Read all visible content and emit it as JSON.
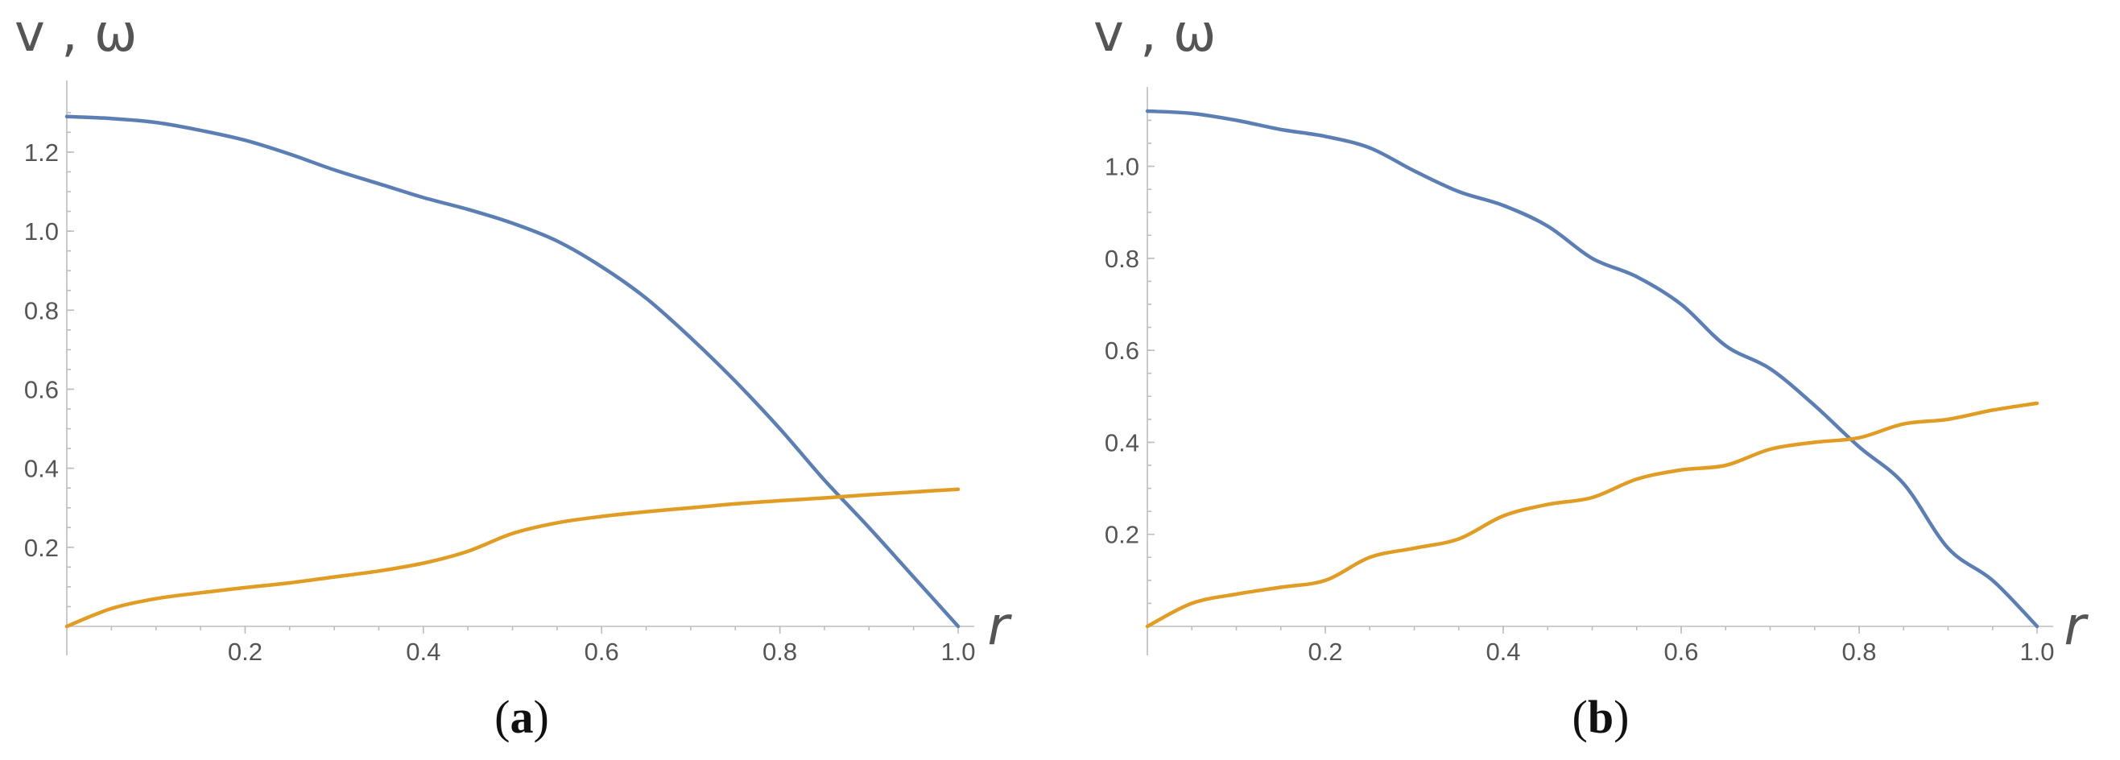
{
  "chart_data": [
    {
      "panel": "(a)",
      "type": "line",
      "ylabel": "v , ω",
      "xlabel": "r",
      "xlim": [
        0,
        1.0
      ],
      "ylim": [
        0,
        1.32
      ],
      "xticks": [
        "0.2",
        "0.4",
        "0.6",
        "0.8",
        "1.0"
      ],
      "yticks": [
        "0.2",
        "0.4",
        "0.6",
        "0.8",
        "1.0",
        "1.2"
      ],
      "grid": false,
      "series": [
        {
          "color": "#5b7fb5",
          "x": [
            0,
            0.05,
            0.1,
            0.15,
            0.2,
            0.25,
            0.3,
            0.35,
            0.4,
            0.45,
            0.5,
            0.55,
            0.6,
            0.65,
            0.7,
            0.75,
            0.8,
            0.85,
            0.9,
            0.95,
            1.0
          ],
          "y": [
            1.29,
            1.285,
            1.275,
            1.255,
            1.23,
            1.195,
            1.155,
            1.12,
            1.085,
            1.055,
            1.02,
            0.975,
            0.91,
            0.83,
            0.73,
            0.62,
            0.5,
            0.37,
            0.25,
            0.125,
            0
          ]
        },
        {
          "color": "#e19c24",
          "x": [
            0,
            0.05,
            0.1,
            0.15,
            0.2,
            0.25,
            0.3,
            0.35,
            0.4,
            0.45,
            0.5,
            0.55,
            0.6,
            0.65,
            0.7,
            0.75,
            0.8,
            0.85,
            0.9,
            0.95,
            1.0
          ],
          "y": [
            0,
            0.045,
            0.07,
            0.085,
            0.098,
            0.11,
            0.125,
            0.14,
            0.16,
            0.19,
            0.235,
            0.262,
            0.278,
            0.29,
            0.3,
            0.31,
            0.318,
            0.325,
            0.333,
            0.34,
            0.347
          ]
        }
      ]
    },
    {
      "panel": "(b)",
      "type": "line",
      "ylabel": "v , ω",
      "xlabel": "r",
      "xlim": [
        0,
        1.0
      ],
      "ylim": [
        0,
        1.12
      ],
      "xticks": [
        "0.2",
        "0.4",
        "0.6",
        "0.8",
        "1.0"
      ],
      "yticks": [
        "0.2",
        "0.4",
        "0.6",
        "0.8",
        "1.0"
      ],
      "grid": false,
      "series": [
        {
          "color": "#5b7fb5",
          "x": [
            0,
            0.05,
            0.1,
            0.15,
            0.2,
            0.25,
            0.3,
            0.35,
            0.4,
            0.45,
            0.5,
            0.55,
            0.6,
            0.65,
            0.7,
            0.75,
            0.8,
            0.85,
            0.9,
            0.95,
            1.0
          ],
          "y": [
            1.12,
            1.115,
            1.1,
            1.08,
            1.065,
            1.04,
            0.99,
            0.945,
            0.915,
            0.87,
            0.8,
            0.76,
            0.7,
            0.61,
            0.56,
            0.48,
            0.39,
            0.31,
            0.17,
            0.1,
            0
          ]
        },
        {
          "color": "#e19c24",
          "x": [
            0,
            0.05,
            0.1,
            0.15,
            0.2,
            0.25,
            0.3,
            0.35,
            0.4,
            0.45,
            0.5,
            0.55,
            0.6,
            0.65,
            0.7,
            0.75,
            0.8,
            0.85,
            0.9,
            0.95,
            1.0
          ],
          "y": [
            0,
            0.05,
            0.07,
            0.085,
            0.1,
            0.15,
            0.17,
            0.19,
            0.24,
            0.265,
            0.28,
            0.32,
            0.34,
            0.35,
            0.385,
            0.4,
            0.41,
            0.44,
            0.45,
            0.47,
            0.485
          ]
        }
      ]
    }
  ],
  "panels": [
    {
      "caption_label": "a",
      "caption_open": "(",
      "caption_close": ")"
    },
    {
      "caption_label": "b",
      "caption_open": "(",
      "caption_close": ")"
    }
  ]
}
